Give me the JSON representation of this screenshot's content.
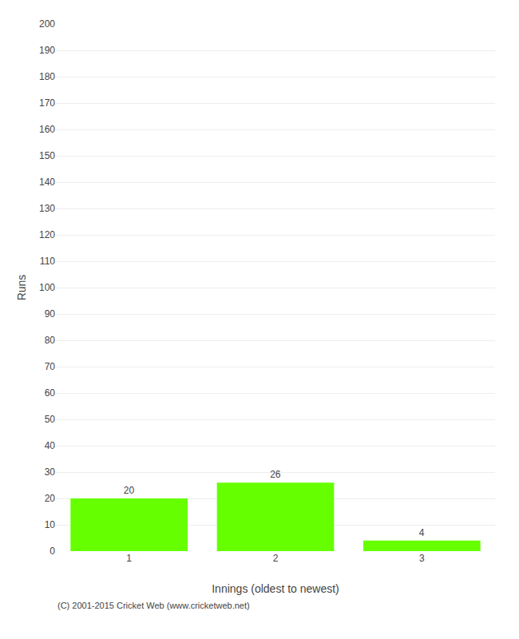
{
  "chart_data": {
    "type": "bar",
    "xlabel": "Innings (oldest to newest)",
    "ylabel": "Runs",
    "categories": [
      "1",
      "2",
      "3"
    ],
    "values": [
      20,
      26,
      4
    ],
    "color": "#66ff00",
    "ylim": [
      0,
      200
    ],
    "yticks": [
      0,
      10,
      20,
      30,
      40,
      50,
      60,
      70,
      80,
      90,
      100,
      110,
      120,
      130,
      140,
      150,
      160,
      170,
      180,
      190,
      200
    ],
    "grid": true,
    "data_labels": true,
    "annotations": [
      "(C) 2001-2015 Cricket Web (www.cricketweb.net)"
    ]
  }
}
